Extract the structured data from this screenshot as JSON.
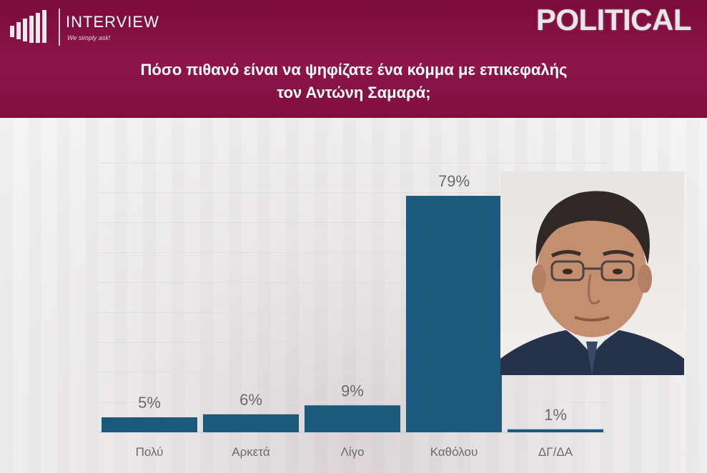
{
  "header": {
    "logo_name": "INTERVIEW",
    "logo_tagline": "We simply ask!",
    "brand": "POLITICAL",
    "title_line1": "Πόσο πιθανό είναι να ψηφίζατε ένα κόμμα με επικεφαλής",
    "title_line2": "τον Αντώνη Σαμαρά;"
  },
  "chart_data": {
    "type": "bar",
    "categories": [
      "Πολύ",
      "Αρκετά",
      "Λίγο",
      "Καθόλου",
      "ΔΓ/ΔΑ"
    ],
    "values": [
      5,
      6,
      9,
      79,
      1
    ],
    "value_labels": [
      "5%",
      "6%",
      "9%",
      "79%",
      "1%"
    ],
    "ylim": [
      0,
      90
    ],
    "grid": true,
    "legend": "none",
    "bar_color": "#1b5a7c"
  },
  "colors": {
    "header_bg": "#8e1549",
    "bar": "#1b5a7c",
    "label_text": "#6a6a6a"
  }
}
